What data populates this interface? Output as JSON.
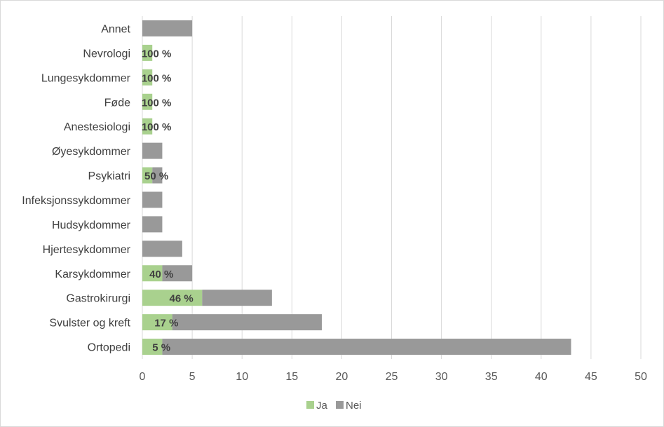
{
  "chart_data": {
    "type": "bar",
    "orientation": "horizontal",
    "stacked": true,
    "categories": [
      "Annet",
      "Nevrologi",
      "Lungesykdommer",
      "Føde",
      "Anestesiologi",
      "Øyesykdommer",
      "Psykiatri",
      "Infeksjonssykdommer",
      "Hudsykdommer",
      "Hjertesykdommer",
      "Karsykdommer",
      "Gastrokirurgi",
      "Svulster og kreft",
      "Ortopedi"
    ],
    "series": [
      {
        "name": "Ja",
        "color": "#a9d18e",
        "values": [
          0,
          1,
          1,
          1,
          1,
          0,
          1,
          0,
          0,
          0,
          2,
          6,
          3,
          2
        ]
      },
      {
        "name": "Nei",
        "color": "#999999",
        "values": [
          5,
          0,
          0,
          0,
          0,
          2,
          1,
          2,
          2,
          4,
          3,
          7,
          15,
          41
        ]
      }
    ],
    "data_labels": [
      "",
      "100 %",
      "100 %",
      "100 %",
      "100 %",
      "",
      "50 %",
      "",
      "",
      "",
      "40 %",
      "46 %",
      "17 %",
      "5 %"
    ],
    "xlim": [
      0,
      50
    ],
    "x_ticks": [
      "0",
      "5",
      "10",
      "15",
      "20",
      "25",
      "30",
      "35",
      "40",
      "45",
      "50"
    ],
    "grid": true,
    "legend": "bottom",
    "title": "",
    "xlabel": "",
    "ylabel": ""
  }
}
